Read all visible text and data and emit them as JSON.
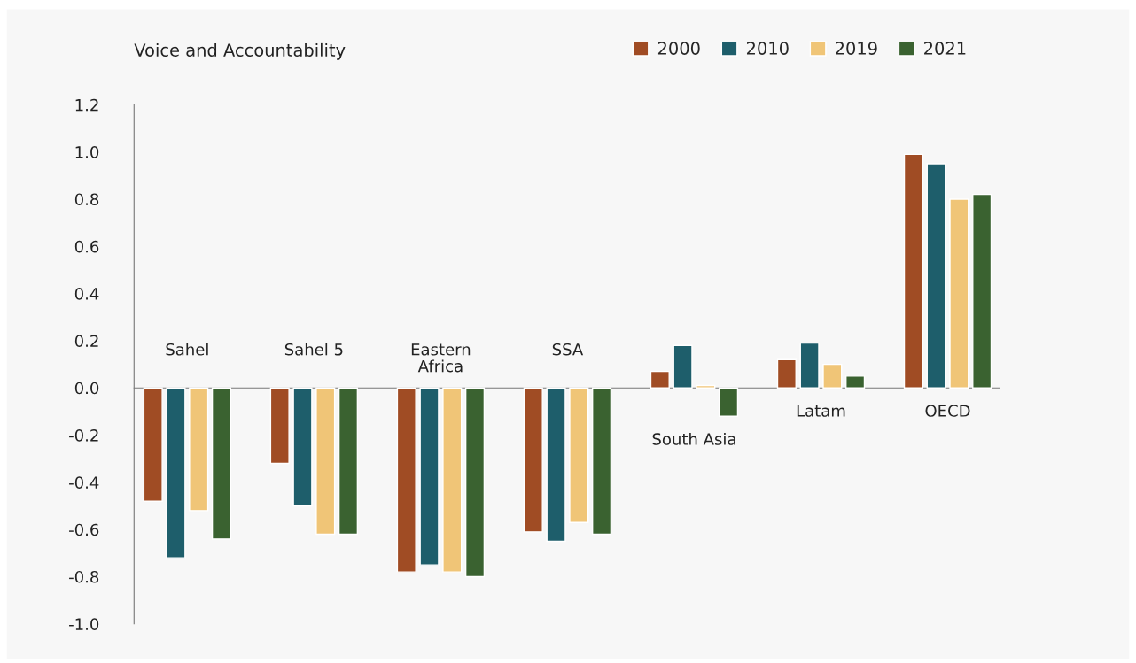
{
  "chart_data": {
    "type": "bar",
    "title": "Voice and Accountability",
    "categories": [
      "Sahel",
      "Sahel 5",
      "Eastern\nAfrica",
      "SSA",
      "South Asia",
      "Latam",
      "OECD"
    ],
    "series": [
      {
        "name": "2000",
        "color": "#a04c24",
        "values": [
          -0.48,
          -0.32,
          -0.78,
          -0.61,
          0.07,
          0.12,
          0.99
        ]
      },
      {
        "name": "2010",
        "color": "#1e5e6b",
        "values": [
          -0.72,
          -0.5,
          -0.75,
          -0.65,
          0.18,
          0.19,
          0.95
        ]
      },
      {
        "name": "2019",
        "color": "#f0c577",
        "values": [
          -0.52,
          -0.62,
          -0.78,
          -0.57,
          0.01,
          0.1,
          0.8
        ]
      },
      {
        "name": "2021",
        "color": "#3a6230",
        "values": [
          -0.64,
          -0.62,
          -0.8,
          -0.62,
          -0.12,
          0.05,
          0.82
        ]
      }
    ],
    "ylim": [
      -1.0,
      1.2
    ],
    "yticks": [
      {
        "value": -1.0,
        "label": "-1.0"
      },
      {
        "value": -0.8,
        "label": "-0.8"
      },
      {
        "value": -0.6,
        "label": "-0.6"
      },
      {
        "value": -0.4,
        "label": "-0.4"
      },
      {
        "value": -0.2,
        "label": "-0.2"
      },
      {
        "value": 0.0,
        "label": "0.0"
      },
      {
        "value": 0.2,
        "label": "0.2"
      },
      {
        "value": 0.4,
        "label": "0.4"
      },
      {
        "value": 0.6,
        "label": "0.6"
      },
      {
        "value": 0.8,
        "label": "0.8"
      },
      {
        "value": 1.0,
        "label": "1.0"
      },
      {
        "value": 1.2,
        "label": "1.2"
      }
    ],
    "grid": false,
    "legend": "top right"
  }
}
